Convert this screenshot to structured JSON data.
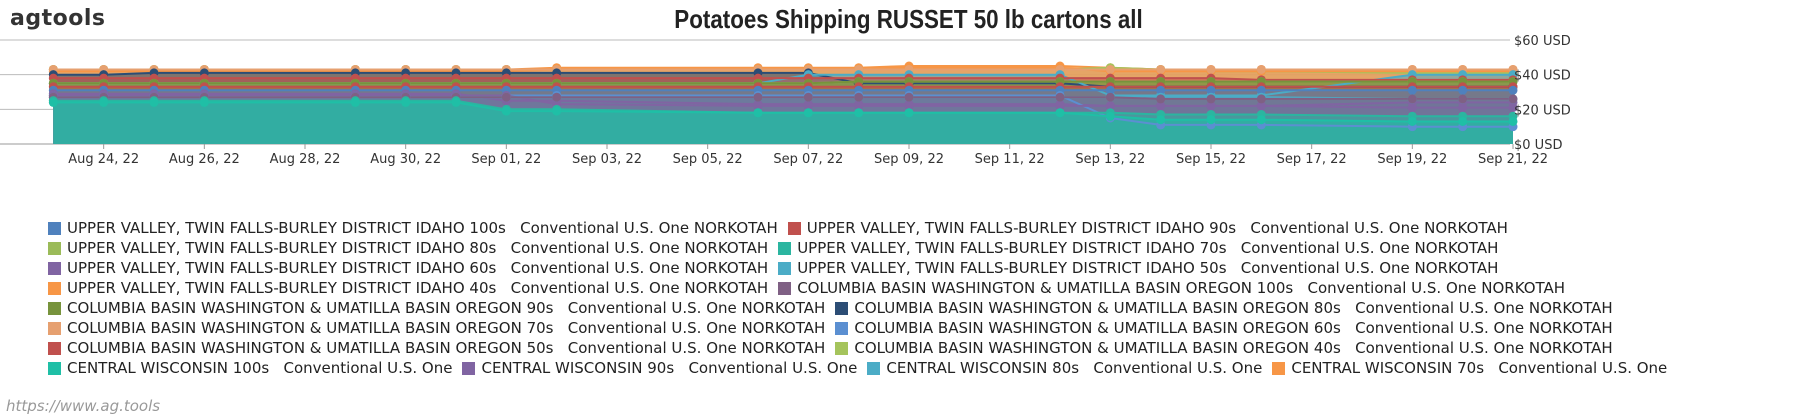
{
  "brand": "agtools",
  "footer_url": "https://www.ag.tools",
  "chart_data": {
    "type": "area",
    "title": "Potatoes Shipping RUSSET 50 lb cartons all",
    "xlabel": "",
    "ylabel": "",
    "y_axis_position": "right",
    "ylim": [
      0,
      60
    ],
    "y_ticks": [
      0,
      20,
      40,
      60
    ],
    "y_tick_labels": [
      "$0 USD",
      "$20 USD",
      "$40 USD",
      "$60 USD"
    ],
    "x_domain": [
      "2022-08-22",
      "2022-09-21"
    ],
    "x_ticks": [
      "2022-08-24",
      "2022-08-26",
      "2022-08-28",
      "2022-08-30",
      "2022-09-01",
      "2022-09-03",
      "2022-09-05",
      "2022-09-07",
      "2022-09-09",
      "2022-09-11",
      "2022-09-13",
      "2022-09-15",
      "2022-09-17",
      "2022-09-19",
      "2022-09-21"
    ],
    "x_tick_labels": [
      "Aug 24, 22",
      "Aug 26, 22",
      "Aug 28, 22",
      "Aug 30, 22",
      "Sep 01, 22",
      "Sep 03, 22",
      "Sep 05, 22",
      "Sep 07, 22",
      "Sep 09, 22",
      "Sep 11, 22",
      "Sep 13, 22",
      "Sep 15, 22",
      "Sep 17, 22",
      "Sep 19, 22",
      "Sep 21, 22"
    ],
    "x": [
      "2022-08-23",
      "2022-08-24",
      "2022-08-25",
      "2022-08-26",
      "2022-08-29",
      "2022-08-30",
      "2022-08-31",
      "2022-09-01",
      "2022-09-02",
      "2022-09-06",
      "2022-09-07",
      "2022-09-08",
      "2022-09-09",
      "2022-09-12",
      "2022-09-13",
      "2022-09-14",
      "2022-09-15",
      "2022-09-16",
      "2022-09-19",
      "2022-09-20",
      "2022-09-21"
    ],
    "legend_position": "bottom",
    "series": [
      {
        "name": "UPPER VALLEY, TWIN FALLS-BURLEY DISTRICT IDAHO 100s   Conventional U.S. One NORKOTAH",
        "color": "#4f81bd",
        "values": [
          31,
          31,
          31,
          31,
          31,
          31,
          31,
          31,
          31,
          31,
          31,
          31,
          31,
          31,
          31,
          31,
          31,
          31,
          31,
          31,
          31
        ]
      },
      {
        "name": "UPPER VALLEY, TWIN FALLS-BURLEY DISTRICT IDAHO 90s   Conventional U.S. One NORKOTAH",
        "color": "#c0504d",
        "values": [
          33,
          33,
          33,
          33,
          33,
          33,
          33,
          33,
          33,
          33,
          33,
          33,
          33,
          33,
          33,
          33,
          33,
          33,
          33,
          33,
          33
        ]
      },
      {
        "name": "UPPER VALLEY, TWIN FALLS-BURLEY DISTRICT IDAHO 80s   Conventional U.S. One NORKOTAH",
        "color": "#9bbb59",
        "values": [
          35,
          35,
          35,
          35,
          35,
          35,
          35,
          35,
          35,
          35,
          35,
          36,
          36,
          36,
          36,
          36,
          36,
          36,
          36,
          36,
          36
        ]
      },
      {
        "name": "UPPER VALLEY, TWIN FALLS-BURLEY DISTRICT IDAHO 70s   Conventional U.S. One NORKOTAH",
        "color": "#2bb5a0",
        "values": [
          25,
          25,
          25,
          25,
          25,
          25,
          25,
          20,
          20,
          18,
          18,
          18,
          18,
          18,
          18,
          17,
          17,
          17,
          16,
          16,
          16
        ]
      },
      {
        "name": "UPPER VALLEY, TWIN FALLS-BURLEY DISTRICT IDAHO 60s   Conventional U.S. One NORKOTAH",
        "color": "#8064a2",
        "values": [
          29,
          29,
          29,
          29,
          29,
          29,
          29,
          25,
          25,
          23,
          23,
          23,
          23,
          23,
          22,
          22,
          22,
          22,
          21,
          21,
          21
        ]
      },
      {
        "name": "UPPER VALLEY, TWIN FALLS-BURLEY DISTRICT IDAHO 50s   Conventional U.S. One NORKOTAH",
        "color": "#4bacc6",
        "values": [
          27,
          27,
          27,
          27,
          27,
          27,
          27,
          27,
          27,
          27,
          27,
          27,
          27,
          27,
          27,
          27,
          27,
          27,
          26,
          26,
          26
        ]
      },
      {
        "name": "UPPER VALLEY, TWIN FALLS-BURLEY DISTRICT IDAHO 40s   Conventional U.S. One NORKOTAH",
        "color": "#f79646",
        "values": [
          43,
          43,
          43,
          43,
          43,
          43,
          43,
          43,
          44,
          44,
          44,
          44,
          45,
          45,
          44,
          43,
          43,
          43,
          43,
          43,
          43
        ]
      },
      {
        "name": "COLUMBIA BASIN WASHINGTON & UMATILLA BASIN OREGON 100s   Conventional U.S. One NORKOTAH",
        "color": "#7f6084",
        "values": [
          27,
          27,
          27,
          27,
          27,
          27,
          27,
          27,
          27,
          27,
          27,
          27,
          27,
          27,
          27,
          26,
          26,
          26,
          26,
          26,
          26
        ]
      },
      {
        "name": "COLUMBIA BASIN WASHINGTON & UMATILLA BASIN OREGON 90s   Conventional U.S. One NORKOTAH",
        "color": "#77933c",
        "values": [
          35,
          35,
          35,
          35,
          35,
          35,
          35,
          35,
          35,
          35,
          35,
          36,
          36,
          36,
          36,
          36,
          36,
          36,
          36,
          36,
          36
        ]
      },
      {
        "name": "COLUMBIA BASIN WASHINGTON & UMATILLA BASIN OREGON 80s   Conventional U.S. One NORKOTAH",
        "color": "#2c4d75",
        "values": [
          40,
          40,
          41,
          41,
          41,
          41,
          41,
          41,
          41,
          41,
          41,
          35,
          35,
          35,
          33,
          33,
          33,
          33,
          33,
          33,
          33
        ]
      },
      {
        "name": "COLUMBIA BASIN WASHINGTON & UMATILLA BASIN OREGON 70s   Conventional U.S. One NORKOTAH",
        "color": "#e6a070",
        "values": [
          43,
          43,
          43,
          43,
          43,
          43,
          43,
          43,
          43,
          43,
          43,
          43,
          43,
          43,
          43,
          43,
          43,
          43,
          43,
          43,
          43
        ]
      },
      {
        "name": "COLUMBIA BASIN WASHINGTON & UMATILLA BASIN OREGON 60s   Conventional U.S. One NORKOTAH",
        "color": "#5b8fd1",
        "values": [
          28,
          28,
          28,
          28,
          28,
          28,
          28,
          28,
          28,
          28,
          28,
          28,
          28,
          28,
          15,
          11,
          11,
          11,
          10,
          10,
          10
        ]
      },
      {
        "name": "COLUMBIA BASIN WASHINGTON & UMATILLA BASIN OREGON 50s   Conventional U.S. One NORKOTAH",
        "color": "#c0504d",
        "values": [
          38,
          38,
          38,
          38,
          38,
          38,
          38,
          38,
          38,
          38,
          38,
          38,
          38,
          38,
          38,
          38,
          38,
          37,
          37,
          37,
          37
        ]
      },
      {
        "name": "COLUMBIA BASIN WASHINGTON & UMATILLA BASIN OREGON 40s   Conventional U.S. One NORKOTAH",
        "color": "#a5c45c",
        "values": [
          43,
          43,
          43,
          43,
          43,
          43,
          43,
          43,
          43,
          43,
          43,
          43,
          43,
          43,
          44,
          43,
          42,
          42,
          41,
          41,
          41
        ]
      },
      {
        "name": "CENTRAL WISCONSIN 100s   Conventional U.S. One",
        "color": "#1fbfa6",
        "values": [
          24,
          24,
          24,
          24,
          24,
          24,
          24,
          19,
          19,
          18,
          18,
          18,
          18,
          18,
          16,
          14,
          14,
          14,
          13,
          13,
          13
        ]
      },
      {
        "name": "CENTRAL WISCONSIN 90s   Conventional U.S. One",
        "color": "#8064a2",
        "values": [
          28,
          28,
          28,
          28,
          28,
          28,
          28,
          28,
          23,
          22,
          22,
          22,
          22,
          22,
          22,
          22,
          22,
          22,
          24,
          24,
          24
        ]
      },
      {
        "name": "CENTRAL WISCONSIN 80s   Conventional U.S. One",
        "color": "#4bacc6",
        "values": [
          35,
          35,
          35,
          35,
          35,
          35,
          35,
          35,
          35,
          35,
          40,
          40,
          40,
          40,
          28,
          28,
          28,
          28,
          40,
          40,
          40
        ]
      },
      {
        "name": "CENTRAL WISCONSIN 70s   Conventional U.S. One",
        "color": "#f79646",
        "values": [
          42,
          42,
          42,
          42,
          42,
          42,
          42,
          42,
          43,
          43,
          43,
          43,
          44,
          44,
          42,
          42,
          42,
          42,
          42,
          42,
          42
        ]
      }
    ]
  }
}
